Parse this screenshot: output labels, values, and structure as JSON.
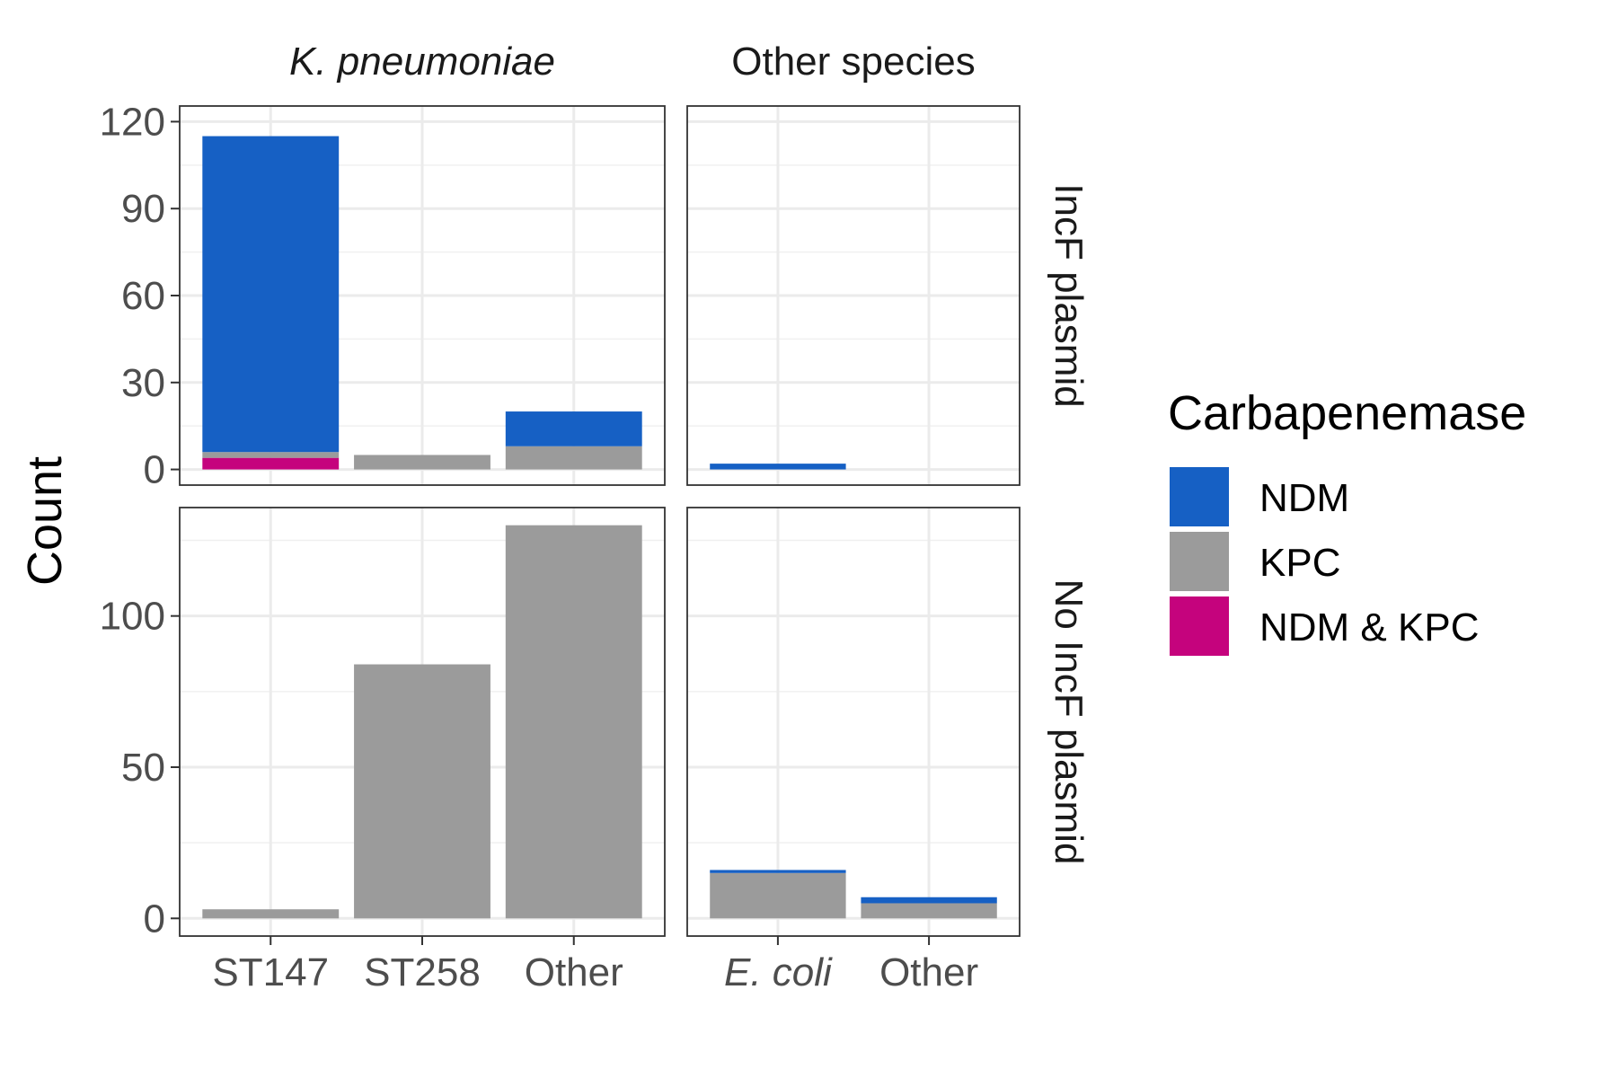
{
  "chart_data": {
    "type": "bar",
    "stacked": true,
    "ylabel": "Count",
    "grid": true,
    "legend": {
      "title": "Carbapenemase",
      "placement": "right",
      "entries": [
        {
          "name": "NDM",
          "color": "#1660C4"
        },
        {
          "name": "KPC",
          "color": "#9B9B9B"
        },
        {
          "name": "NDM & KPC",
          "color": "#C5037D"
        }
      ]
    },
    "columns": [
      {
        "label": "K. pneumoniae",
        "italic": true,
        "categories": [
          "ST147",
          "ST258",
          "Other"
        ],
        "italic_categories": []
      },
      {
        "label": "Other species",
        "italic": false,
        "categories": [
          "E. coli",
          "Other"
        ],
        "italic_categories": [
          "E. coli"
        ]
      }
    ],
    "rows": [
      {
        "label": "IncF plasmid",
        "ylim": [
          0,
          120
        ],
        "yticks": [
          0,
          30,
          60,
          90,
          120
        ]
      },
      {
        "label": "No IncF plasmid",
        "ylim": [
          0,
          130
        ],
        "yticks": [
          0,
          50,
          100
        ]
      }
    ],
    "panels": [
      {
        "row": 0,
        "col": 0,
        "series": [
          {
            "name": "NDM & KPC",
            "values": [
              4,
              0,
              0
            ]
          },
          {
            "name": "KPC",
            "values": [
              2,
              5,
              8
            ]
          },
          {
            "name": "NDM",
            "values": [
              109,
              0,
              12
            ]
          }
        ]
      },
      {
        "row": 0,
        "col": 1,
        "series": [
          {
            "name": "NDM & KPC",
            "values": [
              0,
              0
            ]
          },
          {
            "name": "KPC",
            "values": [
              0,
              0
            ]
          },
          {
            "name": "NDM",
            "values": [
              2,
              0
            ]
          }
        ]
      },
      {
        "row": 1,
        "col": 0,
        "series": [
          {
            "name": "NDM & KPC",
            "values": [
              0,
              0,
              0
            ]
          },
          {
            "name": "KPC",
            "values": [
              3,
              84,
              130
            ]
          },
          {
            "name": "NDM",
            "values": [
              0,
              0,
              0
            ]
          }
        ]
      },
      {
        "row": 1,
        "col": 1,
        "series": [
          {
            "name": "NDM & KPC",
            "values": [
              0,
              0
            ]
          },
          {
            "name": "KPC",
            "values": [
              15,
              5
            ]
          },
          {
            "name": "NDM",
            "values": [
              1,
              2
            ]
          }
        ]
      }
    ]
  }
}
